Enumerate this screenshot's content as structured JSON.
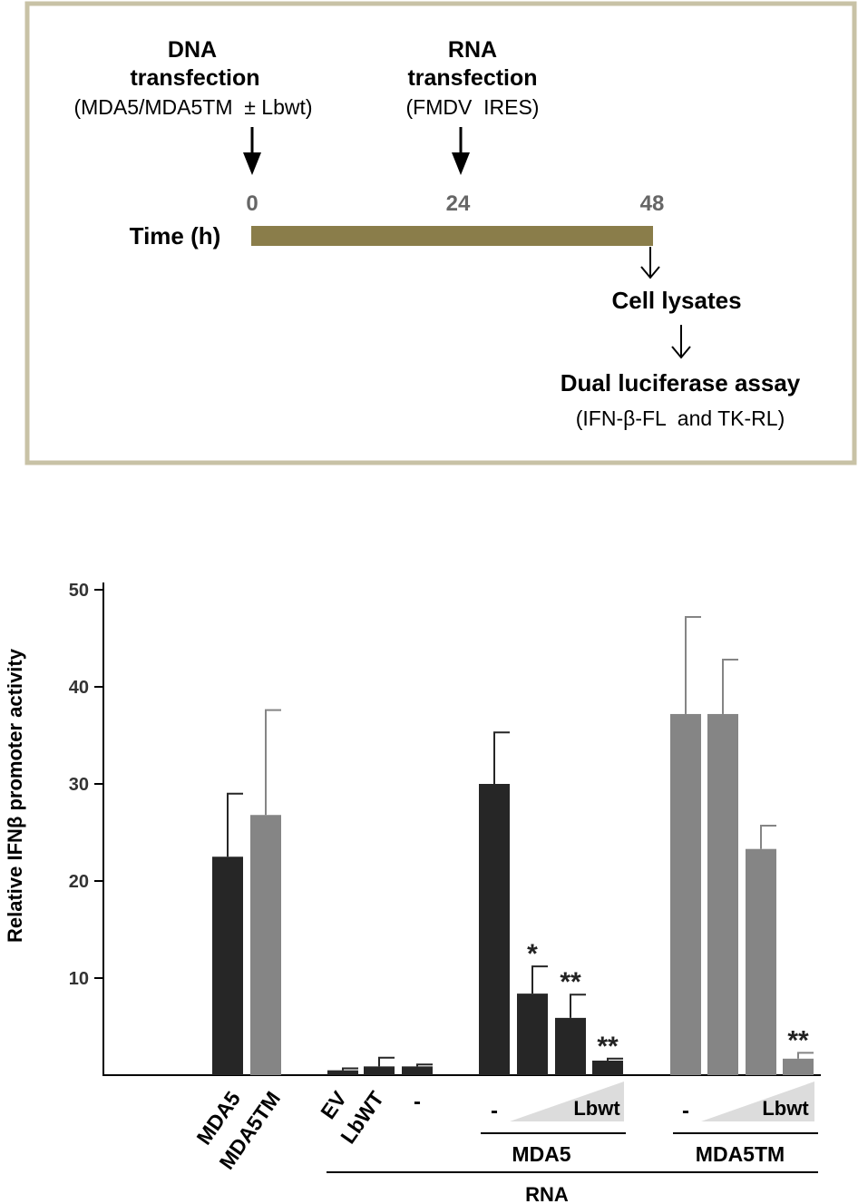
{
  "schematic": {
    "dna_title_line1": "DNA",
    "dna_title_line2": "transfection",
    "dna_detail": "(MDA5/MDA5TM  ± Lbwt)",
    "rna_title_line1": "RNA",
    "rna_title_line2": "transfection",
    "rna_detail": "(FMDV  IRES)",
    "time_label": "Time (h)",
    "time_points": [
      "0",
      "24",
      "48"
    ],
    "lysates_label": "Cell lysates",
    "assay_label": "Dual luciferase assay",
    "assay_detail": "(IFN-β-FL  and TK-RL)",
    "frame_color": "#c8c2a6",
    "timeline_color": "#8a7d4a"
  },
  "chart_data": {
    "type": "bar",
    "ylabel": "Relative IFNβ promoter activity",
    "ylim": [
      0,
      50
    ],
    "yticks": [
      "10",
      "20",
      "30",
      "40",
      "50"
    ],
    "colors": {
      "black": "#262626",
      "gray": "#858585"
    },
    "bars": [
      {
        "name": "MDA5",
        "value": 22.5,
        "error": 6.5,
        "color": "black",
        "sig": ""
      },
      {
        "name": "MDA5TM",
        "value": 26.8,
        "error": 10.8,
        "color": "gray",
        "sig": ""
      },
      {
        "name": "EV",
        "value": 0.5,
        "error": 0.2,
        "color": "black",
        "sig": ""
      },
      {
        "name": "LbWT",
        "value": 0.9,
        "error": 0.9,
        "color": "black",
        "sig": ""
      },
      {
        "name": "-",
        "value": 0.9,
        "error": 0.2,
        "color": "black",
        "sig": ""
      },
      {
        "name": "MDA5 -",
        "value": 30.0,
        "error": 5.3,
        "color": "black",
        "sig": ""
      },
      {
        "name": "MDA5 Lbwt low",
        "value": 8.4,
        "error": 2.8,
        "color": "black",
        "sig": "*"
      },
      {
        "name": "MDA5 Lbwt mid",
        "value": 5.9,
        "error": 2.4,
        "color": "black",
        "sig": "**"
      },
      {
        "name": "MDA5 Lbwt high",
        "value": 1.5,
        "error": 0.2,
        "color": "black",
        "sig": "**"
      },
      {
        "name": "MDA5TM -",
        "value": 37.2,
        "error": 10.0,
        "color": "gray",
        "sig": ""
      },
      {
        "name": "MDA5TM Lbwt low",
        "value": 37.2,
        "error": 5.6,
        "color": "gray",
        "sig": ""
      },
      {
        "name": "MDA5TM Lbwt mid",
        "value": 23.3,
        "error": 2.4,
        "color": "gray",
        "sig": ""
      },
      {
        "name": "MDA5TM Lbwt high",
        "value": 1.7,
        "error": 0.6,
        "color": "gray",
        "sig": "**"
      }
    ],
    "xlabels": {
      "mda5": "MDA5",
      "mda5tm": "MDA5TM",
      "ev": "EV",
      "lbwt_ctrl": "LbWT",
      "dash_ctrl": "-",
      "dash_mda5": "-",
      "lbwt_mda5": "Lbwt",
      "dash_mda5tm": "-",
      "lbwt_mda5tm": "Lbwt"
    },
    "groups": {
      "mda5": "MDA5",
      "mda5tm": "MDA5TM",
      "rna": "RNA"
    }
  }
}
